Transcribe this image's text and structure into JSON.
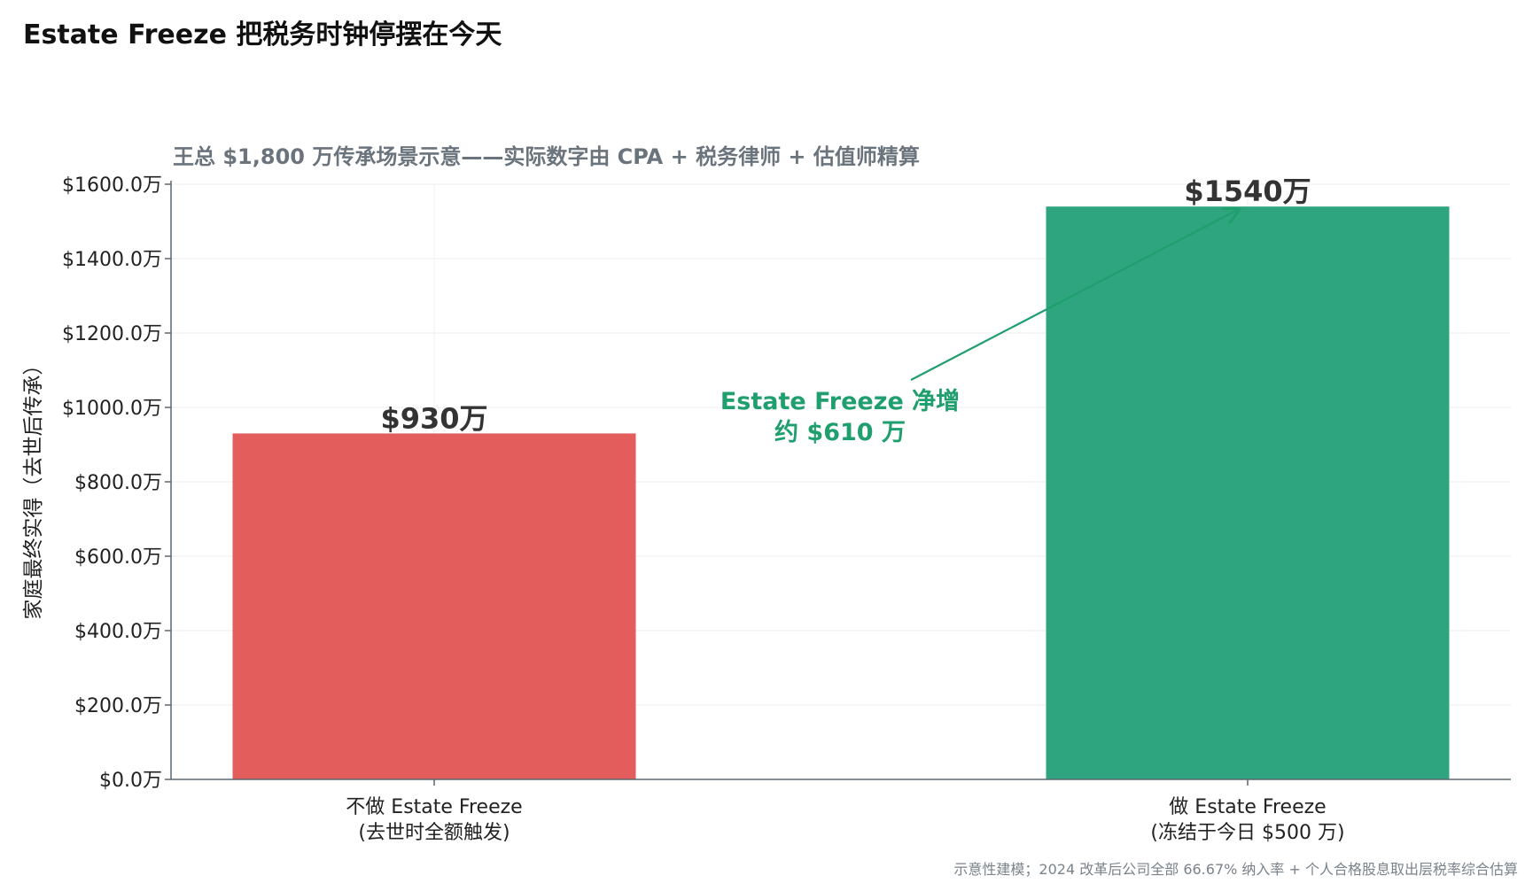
{
  "title": "Estate Freeze 把税务时钟停摆在今天",
  "footnote": "示意性建模；2024 改革后公司全部 66.67% 纳入率 + 个人合格股息取出层税率综合估算",
  "chart_data": {
    "type": "bar",
    "subtitle": "王总 $1,800 万传承场景示意——实际数字由 CPA + 税务律师 + 估值师精算",
    "ylabel": "家庭最终实得（去世后传承）",
    "xlabel": "",
    "ylim": [
      0,
      1600
    ],
    "yticks": [
      0,
      200,
      400,
      600,
      800,
      1000,
      1200,
      1400,
      1600
    ],
    "ytick_labels": [
      "$0.0万",
      "$200.0万",
      "$400.0万",
      "$600.0万",
      "$800.0万",
      "$1000.0万",
      "$1200.0万",
      "$1400.0万",
      "$1600.0万"
    ],
    "grid": true,
    "categories": [
      [
        "不做 Estate Freeze",
        "(去世时全额触发)"
      ],
      [
        "做 Estate Freeze",
        "(冻结于今日 $500 万)"
      ]
    ],
    "values": [
      930,
      1540
    ],
    "value_labels": [
      "$930万",
      "$1540万"
    ],
    "colors": [
      "#e35d5d",
      "#2ea57e"
    ],
    "annotation": {
      "lines": [
        "Estate Freeze 净增",
        "约 $610 万"
      ],
      "color": "#1f9e6e",
      "arrow_to": {
        "category": 1,
        "value": 1540
      }
    }
  }
}
